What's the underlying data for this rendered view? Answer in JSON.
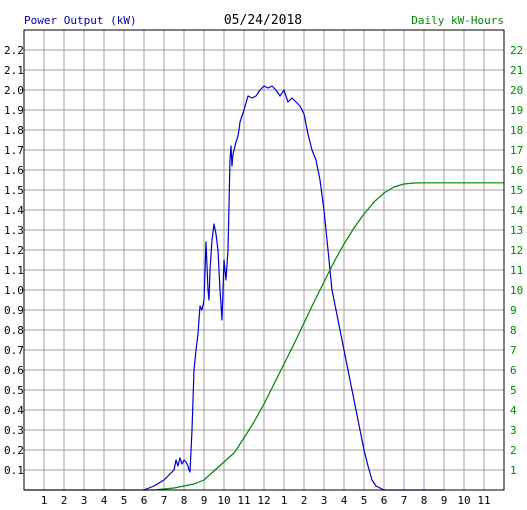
{
  "chart_data": {
    "type": "line",
    "title": "05/24/2018",
    "left_axis_label": "Power Output (kW)",
    "right_axis_label": "Daily kW-Hours",
    "colors": {
      "power": "#0000cc",
      "energy": "#008800",
      "left_label": "#0000aa",
      "right_label": "#008800",
      "grid": "#a0a0a0"
    },
    "grid": true,
    "x_ticks": [
      "1",
      "2",
      "3",
      "4",
      "5",
      "6",
      "7",
      "8",
      "9",
      "10",
      "11",
      "12",
      "1",
      "2",
      "3",
      "4",
      "5",
      "6",
      "7",
      "8",
      "9",
      "10",
      "11"
    ],
    "left_ticks": [
      "0.1",
      "0.2",
      "0.3",
      "0.4",
      "0.5",
      "0.6",
      "0.7",
      "0.8",
      "0.9",
      "1.0",
      "1.1",
      "1.2",
      "1.3",
      "1.4",
      "1.5",
      "1.6",
      "1.7",
      "1.8",
      "1.9",
      "2.0",
      "2.1",
      "2.2"
    ],
    "right_ticks": [
      "1",
      "2",
      "3",
      "4",
      "5",
      "6",
      "7",
      "8",
      "9",
      "10",
      "11",
      "12",
      "13",
      "14",
      "15",
      "16",
      "17",
      "18",
      "19",
      "20",
      "21",
      "22"
    ],
    "xlim": [
      0,
      24
    ],
    "ylim_left": [
      0,
      2.3
    ],
    "ylim_right": [
      0,
      23
    ],
    "series": [
      {
        "name": "Power Output (kW)",
        "axis": "left",
        "x": [
          6.0,
          6.5,
          7.0,
          7.3,
          7.5,
          7.6,
          7.7,
          7.8,
          7.9,
          8.0,
          8.1,
          8.2,
          8.25,
          8.3,
          8.4,
          8.5,
          8.6,
          8.7,
          8.8,
          8.9,
          9.0,
          9.1,
          9.2,
          9.25,
          9.3,
          9.4,
          9.5,
          9.6,
          9.7,
          9.8,
          9.9,
          10.0,
          10.1,
          10.2,
          10.3,
          10.35,
          10.4,
          10.45,
          10.5,
          10.6,
          10.7,
          10.75,
          10.8,
          11.0,
          11.2,
          11.4,
          11.6,
          11.8,
          12.0,
          12.2,
          12.4,
          12.6,
          12.8,
          13.0,
          13.2,
          13.4,
          13.6,
          13.8,
          14.0,
          14.1,
          14.2,
          14.4,
          14.6,
          14.8,
          15.0,
          15.2,
          15.4,
          15.6,
          15.8,
          16.0,
          16.2,
          16.4,
          16.6,
          16.8,
          17.0,
          17.2,
          17.4,
          17.6,
          17.8,
          18.0,
          18.2,
          18.4,
          18.6,
          18.8,
          19.0,
          19.2,
          19.4,
          19.6,
          19.8,
          20.0,
          20.2,
          20.4,
          20.6,
          20.8,
          21.0
        ],
        "values": [
          0.0,
          0.02,
          0.05,
          0.08,
          0.1,
          0.15,
          0.12,
          0.16,
          0.13,
          0.15,
          0.14,
          0.12,
          0.1,
          0.09,
          0.3,
          0.6,
          0.7,
          0.78,
          0.92,
          0.9,
          0.95,
          1.24,
          1.0,
          0.95,
          1.1,
          1.25,
          1.33,
          1.28,
          1.2,
          1.0,
          0.85,
          1.15,
          1.05,
          1.2,
          1.65,
          1.72,
          1.62,
          1.68,
          1.7,
          1.74,
          1.77,
          1.8,
          1.84,
          1.9,
          1.97,
          1.96,
          1.97,
          2.0,
          2.02,
          2.01,
          2.02,
          2.0,
          1.97,
          2.0,
          1.94,
          1.96,
          1.94,
          1.92,
          1.88,
          1.83,
          1.78,
          1.7,
          1.65,
          1.55,
          1.4,
          1.2,
          1.0,
          0.9,
          0.8,
          0.7,
          0.6,
          0.5,
          0.4,
          0.3,
          0.2,
          0.12,
          0.05,
          0.02,
          0.01,
          0.0,
          0.0,
          0.0,
          0.0,
          0.0,
          0.0,
          0.0,
          0.0,
          0.0,
          0.0,
          0.0,
          0.0,
          0.0,
          0.0,
          0.0,
          0.0
        ],
        "color": "#0000cc"
      },
      {
        "name": "Daily kW-Hours",
        "axis": "right",
        "x": [
          0.0,
          6.5,
          7.0,
          7.5,
          8.0,
          8.5,
          9.0,
          9.5,
          10.0,
          10.5,
          11.0,
          11.5,
          12.0,
          12.5,
          13.0,
          13.5,
          14.0,
          14.5,
          15.0,
          15.5,
          16.0,
          16.5,
          17.0,
          17.5,
          18.0,
          18.5,
          19.0,
          19.5,
          20.0,
          21.0,
          22.0,
          23.0,
          24.0
        ],
        "values": [
          0.0,
          0.0,
          0.05,
          0.1,
          0.2,
          0.3,
          0.5,
          0.95,
          1.4,
          1.85,
          2.6,
          3.4,
          4.3,
          5.3,
          6.3,
          7.3,
          8.35,
          9.4,
          10.4,
          11.4,
          12.3,
          13.1,
          13.8,
          14.4,
          14.85,
          15.15,
          15.3,
          15.35,
          15.36,
          15.36,
          15.36,
          15.36,
          15.36
        ],
        "color": "#008800"
      }
    ]
  }
}
